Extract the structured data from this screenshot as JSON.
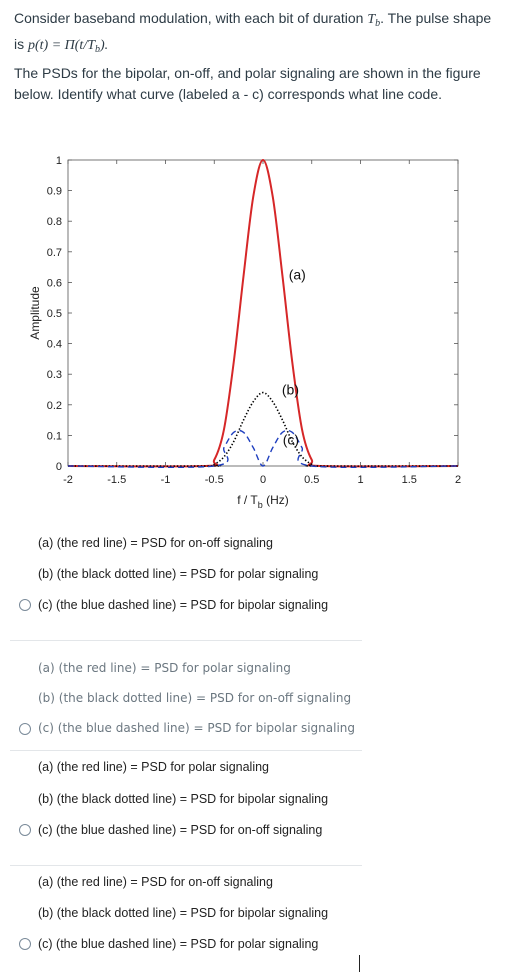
{
  "question": {
    "line1_prefix": "Consider baseband modulation, with each bit of duration ",
    "line1_math": "T",
    "line1_math_sub": "b",
    "line1_suffix": ". The pulse shape",
    "line2_prefix": "is ",
    "line2_math": "p(t) = Π(t/T",
    "line2_math_sub": "b",
    "line2_math_end": ").",
    "paragraph": "The PSDs for the bipolar, on-off, and polar signaling are shown in the figure below. Identify what curve (labeled a - c) corresponds what line code."
  },
  "chart_data": {
    "type": "line",
    "xlabel": "f / T",
    "xlabel_sub": "b",
    "xlabel_unit": " (Hz)",
    "ylabel": "Amplitude",
    "xlim": [
      -2,
      2
    ],
    "ylim": [
      0,
      1
    ],
    "xticks": [
      "-2",
      "-1.5",
      "-1",
      "-0.5",
      "0",
      "0.5",
      "1",
      "1.5",
      "2"
    ],
    "yticks": [
      "0",
      "0.1",
      "0.2",
      "0.3",
      "0.4",
      "0.5",
      "0.6",
      "0.7",
      "0.8",
      "0.9",
      "1"
    ],
    "series": [
      {
        "label": "(a)",
        "color": "#d62728",
        "style": "solid",
        "x": [
          -2,
          -0.6,
          -0.5,
          -0.4,
          -0.3,
          -0.2,
          -0.1,
          0,
          0.1,
          0.2,
          0.3,
          0.4,
          0.5,
          0.6,
          2
        ],
        "y": [
          0,
          0,
          0.02,
          0.12,
          0.34,
          0.62,
          0.88,
          1.0,
          0.88,
          0.62,
          0.34,
          0.12,
          0.02,
          0,
          0
        ]
      },
      {
        "label": "(b)",
        "color": "#000000",
        "style": "dotted",
        "x": [
          -2,
          -0.55,
          -0.5,
          -0.4,
          -0.3,
          -0.2,
          -0.1,
          0,
          0.1,
          0.2,
          0.3,
          0.4,
          0.5,
          0.55,
          2
        ],
        "y": [
          0,
          0,
          0.005,
          0.03,
          0.08,
          0.15,
          0.21,
          0.24,
          0.21,
          0.15,
          0.08,
          0.03,
          0.005,
          0,
          0
        ]
      },
      {
        "label": "(c)",
        "color": "#1f3fbf",
        "style": "dashed",
        "x": [
          -2,
          -0.5,
          -0.4,
          -0.3,
          -0.2,
          -0.1,
          0,
          0.1,
          0.2,
          0.3,
          0.4,
          0.5,
          2
        ],
        "y": [
          0,
          0,
          0.06,
          0.11,
          0.11,
          0.06,
          0,
          0.06,
          0.11,
          0.11,
          0.06,
          0,
          0
        ]
      }
    ]
  },
  "options": [
    {
      "style": "arial",
      "lines": [
        "(a) (the red line) = PSD for on-off signaling",
        "(b) (the black dotted line) = PSD for polar signaling",
        "(c) (the blue dashed line) = PSD for bipolar signaling"
      ]
    },
    {
      "style": "lato",
      "lines": [
        "(a) (the red line) = PSD for polar signaling",
        "(b) (the black dotted line) = PSD for on-off signaling",
        "(c) (the blue dashed line) = PSD for bipolar signaling"
      ]
    },
    {
      "style": "arial",
      "lines": [
        "(a) (the red line) = PSD for polar signaling",
        "(b) (the black dotted line) = PSD for bipolar signaling",
        "(c) (the blue dashed line) = PSD for on-off signaling"
      ]
    },
    {
      "style": "arial",
      "lines": [
        "(a) (the red line) = PSD for on-off signaling",
        "(b) (the black dotted line) = PSD for bipolar signaling",
        "(c) (the blue dashed line) = PSD for polar signaling"
      ]
    }
  ]
}
